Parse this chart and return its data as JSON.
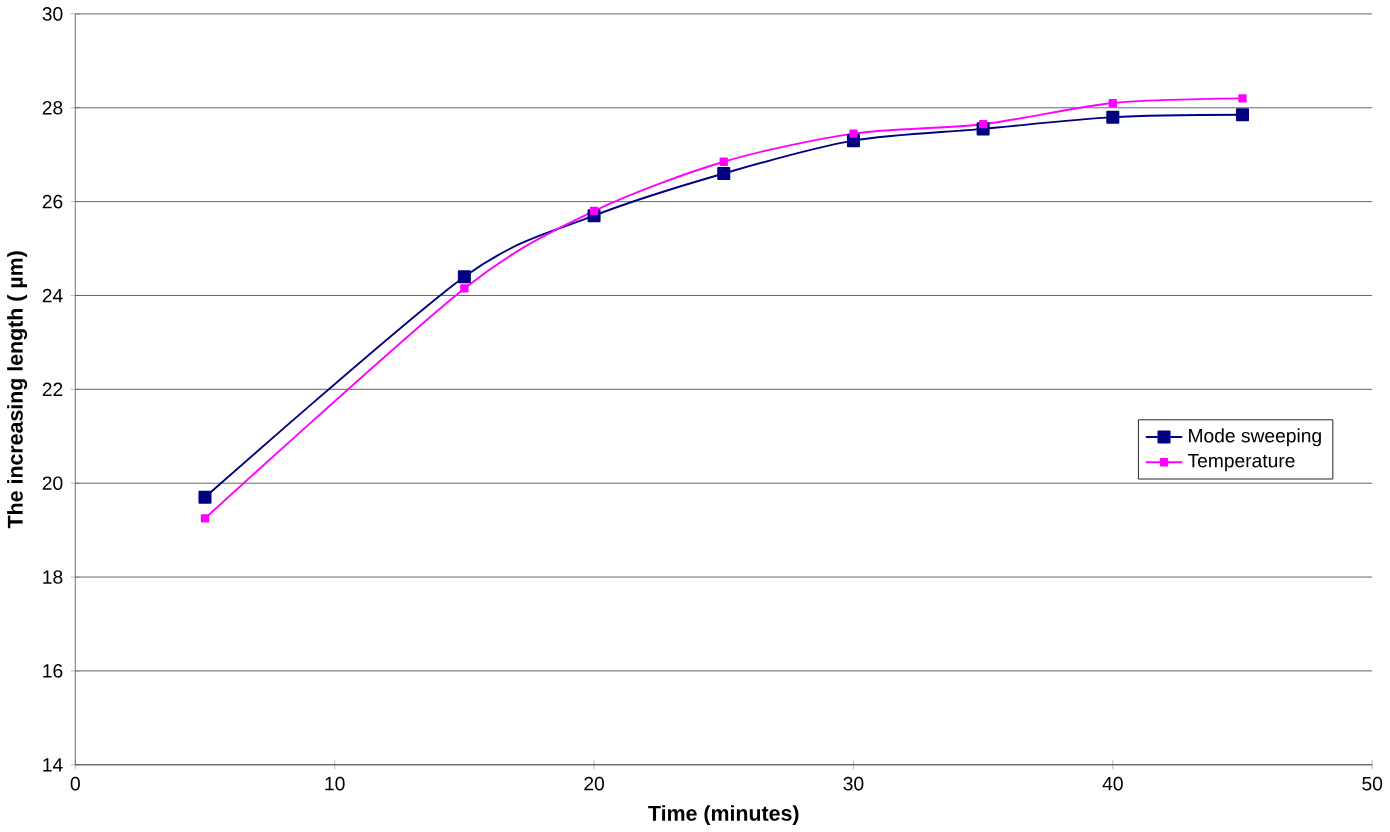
{
  "chart_data": {
    "type": "line",
    "xlabel": "Time (minutes)",
    "ylabel": "The increasing length ( µm)",
    "x": [
      5,
      15,
      20,
      25,
      30,
      35,
      40,
      45
    ],
    "series": [
      {
        "name": "Mode sweeping",
        "color": "#000080",
        "values": [
          19.7,
          24.4,
          25.7,
          26.6,
          27.3,
          27.55,
          27.8,
          27.85
        ]
      },
      {
        "name": "Temperature",
        "color": "#ff00ff",
        "values": [
          19.25,
          24.15,
          25.8,
          26.85,
          27.45,
          27.65,
          28.1,
          28.2
        ]
      }
    ],
    "xlim": [
      0,
      50
    ],
    "ylim": [
      14,
      30
    ],
    "xticks": [
      0,
      10,
      20,
      30,
      40,
      50
    ],
    "yticks": [
      14,
      16,
      18,
      20,
      22,
      24,
      26,
      28,
      30
    ],
    "grid": "y",
    "legend": "right",
    "marker": "square",
    "line_style": "solid"
  }
}
